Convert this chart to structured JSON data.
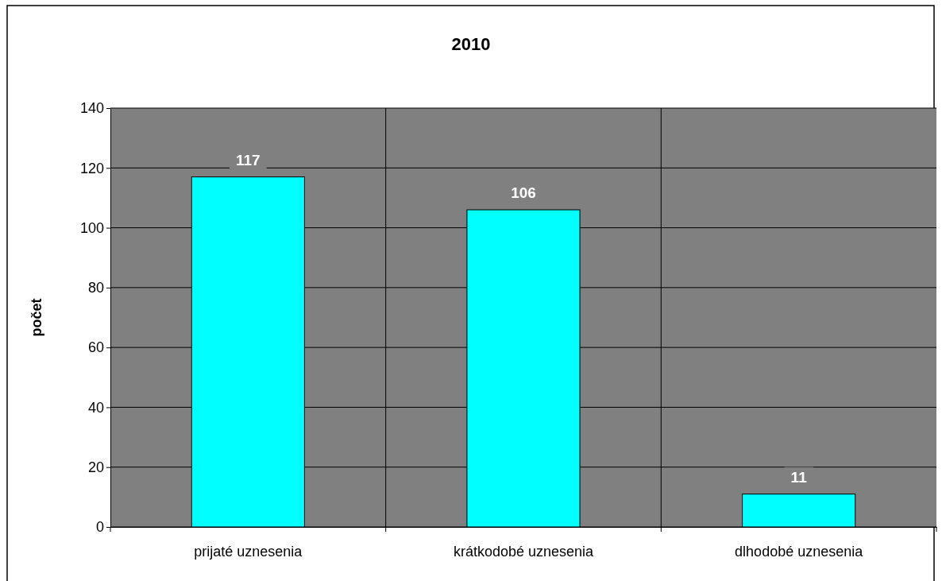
{
  "chart_data": {
    "type": "bar",
    "title": "2010",
    "ylabel": "počet",
    "categories": [
      "prijaté uznesenia",
      "krátkodobé uznesenia",
      "dlhodobé uznesenia"
    ],
    "values": [
      117,
      106,
      11
    ],
    "color": "#00ffff",
    "ylim": [
      0,
      140
    ],
    "yticks": [
      0,
      20,
      40,
      60,
      80,
      100,
      120,
      140
    ],
    "grid": true,
    "data_labels": true
  }
}
